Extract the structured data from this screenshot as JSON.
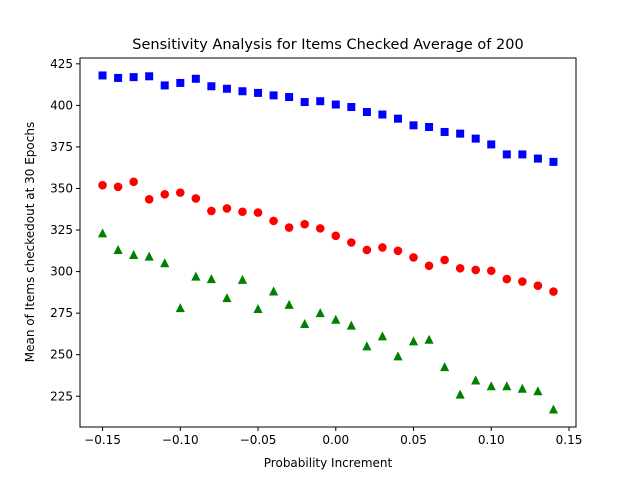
{
  "chart_data": {
    "type": "scatter",
    "title": "Sensitivity Analysis for Items Checked Average of 200",
    "xlabel": "Probability Increment",
    "ylabel": "Mean of Items checkedout at 30 Epochs",
    "xlim": [
      -0.1645,
      0.1545
    ],
    "ylim": [
      206.5,
      428.5
    ],
    "xticks": [
      -0.15,
      -0.1,
      -0.05,
      0.0,
      0.05,
      0.1,
      0.15
    ],
    "xtick_labels": [
      "−0.15",
      "−0.10",
      "−0.05",
      "0.00",
      "0.05",
      "0.10",
      "0.15"
    ],
    "yticks": [
      225,
      250,
      275,
      300,
      325,
      350,
      375,
      400,
      425
    ],
    "ytick_labels": [
      "225",
      "250",
      "275",
      "300",
      "325",
      "350",
      "375",
      "400",
      "425"
    ],
    "grid": false,
    "legend": "none",
    "x": [
      -0.15,
      -0.14,
      -0.13,
      -0.12,
      -0.11,
      -0.1,
      -0.09,
      -0.08,
      -0.07,
      -0.06,
      -0.05,
      -0.04,
      -0.03,
      -0.02,
      -0.01,
      0.0,
      0.01,
      0.02,
      0.03,
      0.04,
      0.05,
      0.06,
      0.07,
      0.08,
      0.09,
      0.1,
      0.11,
      0.12,
      0.13,
      0.14
    ],
    "series": [
      {
        "marker": "square",
        "color": "#0000ff",
        "values": [
          418,
          416.5,
          417,
          417.5,
          412,
          413.5,
          416,
          411.5,
          410,
          408.5,
          407.5,
          406,
          405,
          402,
          402.5,
          400.5,
          399,
          396,
          394.5,
          392,
          388,
          387,
          384,
          383,
          380,
          376.5,
          370.5,
          370.5,
          368,
          366
        ]
      },
      {
        "marker": "circle",
        "color": "#ff0000",
        "values": [
          352,
          351,
          354,
          343.5,
          346.5,
          347.5,
          344,
          336.5,
          338,
          336,
          335.5,
          330.5,
          326.5,
          328.5,
          326,
          321.5,
          317.5,
          313,
          314.5,
          312.5,
          308.5,
          303.5,
          307,
          302,
          301,
          300.5,
          295.5,
          294,
          291.5,
          288
        ]
      },
      {
        "marker": "triangle",
        "color": "#008000",
        "values": [
          323,
          313,
          310,
          309,
          305,
          278,
          297,
          295.5,
          284,
          295,
          277.5,
          288,
          280,
          268.5,
          275,
          271,
          267.5,
          255,
          261,
          249,
          258,
          259,
          242.5,
          226,
          234.5,
          231,
          231,
          229.5,
          228,
          217
        ]
      }
    ]
  }
}
